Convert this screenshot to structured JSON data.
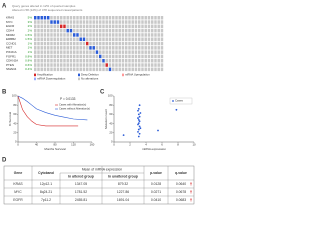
{
  "panel_a": {
    "label": "A",
    "header": [
      "Query genes altered in 12% of queried samples",
      "Altered in 58 (12%) of 478 sequenced cases/patients"
    ],
    "genes": [
      {
        "name": "KRAS",
        "pct": "5%",
        "color": "#2a5bd7",
        "samples": [
          0,
          1,
          2,
          3,
          4
        ]
      },
      {
        "name": "MYC",
        "pct": "3%",
        "color": "#2a5bd7",
        "samples": [
          5,
          6,
          7
        ]
      },
      {
        "name": "EGFR",
        "pct": "2%",
        "color": "#d62728",
        "samples": [
          8,
          9
        ]
      },
      {
        "name": "CDK4",
        "pct": "2%",
        "color": "#2a5bd7",
        "samples": [
          10,
          11
        ]
      },
      {
        "name": "MDM2",
        "pct": "1.5%",
        "color": "#2a5bd7",
        "samples": [
          12,
          13
        ]
      },
      {
        "name": "ERBB2",
        "pct": "1.5%",
        "color": "#2a5bd7",
        "samples": [
          14,
          15
        ]
      },
      {
        "name": "CCND1",
        "pct": "1%",
        "color": "#d62728",
        "samples": [
          16
        ]
      },
      {
        "name": "MET",
        "pct": "1%",
        "color": "#2a5bd7",
        "samples": [
          17,
          18
        ]
      },
      {
        "name": "PIK3CA",
        "pct": "1%",
        "color": "#2a5bd7",
        "samples": [
          19
        ]
      },
      {
        "name": "FGFR1",
        "pct": "0.8%",
        "color": "#2a5bd7",
        "samples": [
          20
        ]
      },
      {
        "name": "CDKN2A",
        "pct": "0.8%",
        "color": "#2a5bd7",
        "samples": [
          21
        ]
      },
      {
        "name": "PTEN",
        "pct": "0.6%",
        "color": "#d62728",
        "samples": [
          22
        ]
      },
      {
        "name": "SMAD4",
        "pct": "0.4%",
        "color": "#2a5bd7",
        "samples": [
          23
        ]
      }
    ],
    "legend": [
      "Amplification",
      "Deep Deletion",
      "mRNA Upregulation",
      "mRNA Downregulation",
      "No alterations"
    ]
  },
  "panel_b": {
    "label": "B",
    "p_label": "P = 0.0133",
    "x_label": "Months Survival",
    "y_label": "% Survival",
    "xlim": [
      0,
      160
    ],
    "ylim": [
      0,
      100
    ],
    "xticks": [
      0,
      40,
      80,
      120,
      160
    ],
    "yticks": [
      0,
      20,
      40,
      60,
      80,
      100
    ],
    "series": [
      {
        "name": "Cases with Alteration(s)",
        "color": "#d62728",
        "x": [
          0,
          5,
          10,
          20,
          30,
          40,
          60,
          80,
          100,
          130
        ],
        "y": [
          100,
          85,
          70,
          55,
          45,
          38,
          35,
          35,
          35,
          35
        ]
      },
      {
        "name": "Cases without Alteration(s)",
        "color": "#2a5bd7",
        "x": [
          0,
          10,
          20,
          30,
          40,
          60,
          80,
          100,
          120,
          150
        ],
        "y": [
          100,
          95,
          88,
          80,
          72,
          64,
          58,
          54,
          50,
          48
        ]
      }
    ]
  },
  "panel_c": {
    "label": "C",
    "legend": "Cases",
    "x_label": "mRNA expression",
    "y_label": "Mutation count",
    "xlim": [
      0,
      10
    ],
    "ylim": [
      0,
      100
    ],
    "xticks": [
      0,
      2,
      4,
      6,
      8,
      10
    ],
    "yticks": [
      0,
      20,
      40,
      60,
      80,
      100
    ],
    "points": {
      "x": [
        3.1,
        3.2,
        3.0,
        3.1,
        3.3,
        3.2,
        3.0,
        3.1,
        3.2,
        3.1,
        3.0,
        3.2,
        3.1,
        3.3,
        3.0,
        3.1,
        3.2,
        7.8,
        1.2,
        5.5
      ],
      "y": [
        12,
        18,
        22,
        27,
        30,
        34,
        38,
        41,
        45,
        48,
        52,
        55,
        60,
        63,
        68,
        72,
        80,
        70,
        15,
        25
      ]
    }
  },
  "panel_d": {
    "label": "D",
    "group_header": "Mean of mRNA expression",
    "columns": [
      "Gene",
      "Cytoband",
      "In altered group",
      "In unaltered group",
      "p-value",
      "q-value"
    ],
    "rows": [
      [
        "KRAS",
        "12p12.1",
        "1347.05",
        "879.32",
        "0.0128",
        "0.0640"
      ],
      [
        "MYC",
        "8q24.21",
        "1781.52",
        "1227.86",
        "0.0271",
        "0.0678"
      ],
      [
        "EGFR",
        "7p11.2",
        "2455.81",
        "1691.04",
        "0.0410",
        "0.0683"
      ]
    ]
  }
}
